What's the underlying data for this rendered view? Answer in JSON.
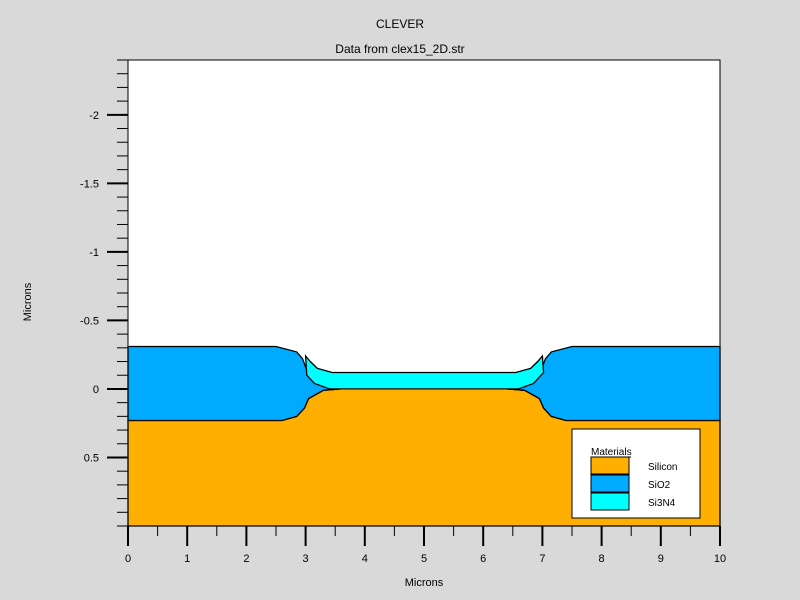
{
  "app_title": "CLEVER",
  "chart_data": {
    "type": "area",
    "title": "Data from clex15_2D.str",
    "xlabel": "Microns",
    "ylabel": "Microns",
    "xlim": [
      0,
      10
    ],
    "ylim": [
      1.0,
      -2.4
    ],
    "y_inverted": true,
    "x_ticks": [
      0,
      1,
      2,
      3,
      4,
      5,
      6,
      7,
      8,
      9,
      10
    ],
    "x_tick_labels": [
      "0",
      "1",
      "2",
      "3",
      "4",
      "5",
      "6",
      "7",
      "8",
      "9",
      "10"
    ],
    "y_ticks": [
      -2,
      -1.5,
      -1,
      -0.5,
      0,
      0.5
    ],
    "y_tick_labels": [
      "-2",
      "-1.5",
      "-1",
      "-0.5",
      "0",
      "0.5"
    ],
    "legend": {
      "title": "Materials",
      "placement": "bottom-right",
      "entries": [
        {
          "name": "Silicon",
          "color": "#ffaf00"
        },
        {
          "name": "SiO2",
          "color": "#00aaff"
        },
        {
          "name": "Si3N4",
          "color": "#00ffff"
        }
      ]
    },
    "regions": [
      {
        "material": "Silicon",
        "color": "#ffaf00",
        "boundary": [
          [
            0,
            1.0
          ],
          [
            0,
            0.23
          ],
          [
            2.6,
            0.23
          ],
          [
            2.85,
            0.2
          ],
          [
            2.98,
            0.14
          ],
          [
            3.05,
            0.07
          ],
          [
            3.3,
            0.01
          ],
          [
            3.6,
            0.0
          ],
          [
            6.4,
            0.0
          ],
          [
            6.7,
            0.01
          ],
          [
            6.95,
            0.07
          ],
          [
            7.02,
            0.14
          ],
          [
            7.15,
            0.2
          ],
          [
            7.4,
            0.23
          ],
          [
            10,
            0.23
          ],
          [
            10,
            1.0
          ]
        ]
      },
      {
        "material": "SiO2",
        "color": "#00aaff",
        "boundary": [
          [
            0,
            0.23
          ],
          [
            0,
            -0.31
          ],
          [
            2.5,
            -0.31
          ],
          [
            2.85,
            -0.27
          ],
          [
            2.95,
            -0.22
          ],
          [
            3.05,
            -0.1
          ],
          [
            3.3,
            -0.03
          ],
          [
            3.5,
            0.0
          ],
          [
            6.5,
            0.0
          ],
          [
            6.7,
            -0.03
          ],
          [
            6.95,
            -0.1
          ],
          [
            7.05,
            -0.22
          ],
          [
            7.15,
            -0.27
          ],
          [
            7.5,
            -0.31
          ],
          [
            10,
            -0.31
          ],
          [
            10,
            0.23
          ],
          [
            7.4,
            0.23
          ],
          [
            7.15,
            0.2
          ],
          [
            7.02,
            0.14
          ],
          [
            6.95,
            0.07
          ],
          [
            6.7,
            0.01
          ],
          [
            6.4,
            0.0
          ],
          [
            3.6,
            0.0
          ],
          [
            3.3,
            0.01
          ],
          [
            3.05,
            0.07
          ],
          [
            2.98,
            0.14
          ],
          [
            2.85,
            0.2
          ],
          [
            2.6,
            0.23
          ]
        ]
      },
      {
        "material": "Si3N4",
        "color": "#00ffff",
        "boundary": [
          [
            3.0,
            -0.24
          ],
          [
            3.08,
            -0.2
          ],
          [
            3.2,
            -0.15
          ],
          [
            3.45,
            -0.12
          ],
          [
            6.55,
            -0.12
          ],
          [
            6.8,
            -0.15
          ],
          [
            6.92,
            -0.2
          ],
          [
            7.0,
            -0.24
          ],
          [
            7.02,
            -0.12
          ],
          [
            6.85,
            -0.04
          ],
          [
            6.6,
            0.0
          ],
          [
            3.4,
            0.0
          ],
          [
            3.15,
            -0.04
          ],
          [
            3.02,
            -0.1
          ]
        ]
      }
    ]
  }
}
